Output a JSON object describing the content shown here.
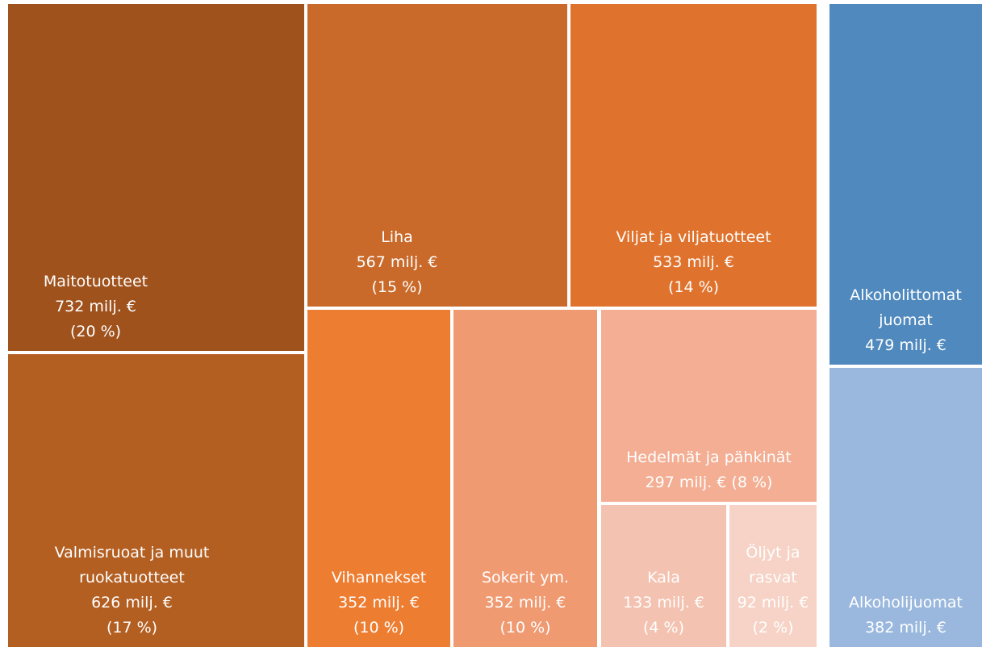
{
  "chart_data": {
    "type": "treemap",
    "categories": [
      "Maitotuotteet",
      "Valmisruoat ja muut ruokatuotteet",
      "Liha",
      "Viljat ja viljatuotteet",
      "Vihannekset",
      "Sokerit ym.",
      "Hedelmät ja pähkinät",
      "Kala",
      "Öljyt ja rasvat",
      "Alkoholittomat juomat",
      "Alkoholijuomat"
    ],
    "values": [
      732,
      626,
      567,
      533,
      352,
      352,
      297,
      133,
      92,
      479,
      382
    ],
    "value_labels": [
      "732 milj. €",
      "626 milj. €",
      "567 milj. €",
      "533 milj. €",
      "352 milj. €",
      "352 milj. €",
      "297 milj. €",
      "133 milj. €",
      "92 milj. €",
      "479 milj. €",
      "382 milj. €"
    ],
    "percent_labels": [
      "(20 %)",
      "(17 %)",
      "(15 %)",
      "(14 %)",
      "(10 %)",
      "(10 %)",
      "(8 %)",
      "(4 %)",
      "(2 %)",
      null,
      null
    ],
    "colors": [
      "#a0521d",
      "#b35f22",
      "#c96a2b",
      "#df732d",
      "#ed7d31",
      "#f09a72",
      "#f3ae93",
      "#f4c2b0",
      "#f6d3c6",
      "#5089bd",
      "#9ab8de"
    ]
  }
}
